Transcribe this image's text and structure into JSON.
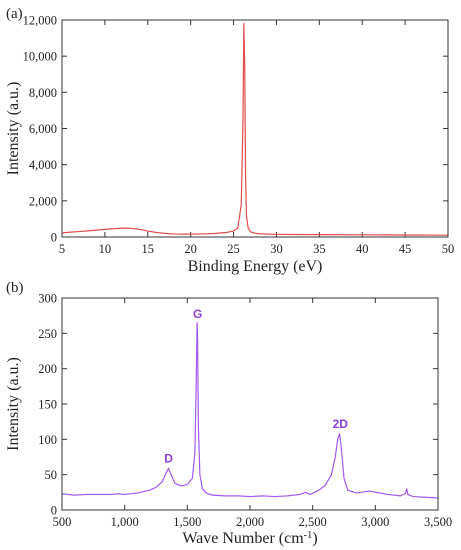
{
  "chart_data": [
    {
      "panel_label": "(a)",
      "type": "line",
      "xlabel": "Binding Energy (eV)",
      "ylabel": "Intensity (a.u.)",
      "xlim": [
        5,
        50
      ],
      "ylim": [
        0,
        12000
      ],
      "x_ticks": [
        "5",
        "10",
        "15",
        "20",
        "25",
        "30",
        "35",
        "40",
        "45",
        "50"
      ],
      "y_ticks": [
        "0",
        "2,000",
        "4,000",
        "6,000",
        "8,000",
        "10,000",
        "12,000"
      ],
      "series": [
        {
          "color": "#e24b4b",
          "x": [
            5,
            6,
            7,
            8,
            9,
            10,
            11,
            12,
            13,
            14,
            15,
            16,
            17,
            18,
            19,
            20,
            21,
            22,
            23,
            24,
            25,
            25.5,
            25.9,
            26.1,
            26.2,
            26.3,
            26.4,
            26.5,
            26.7,
            27,
            27.5,
            28,
            29,
            30,
            32,
            35,
            40,
            45,
            50
          ],
          "y": [
            230,
            270,
            300,
            340,
            380,
            420,
            460,
            490,
            480,
            430,
            330,
            250,
            200,
            170,
            160,
            160,
            170,
            180,
            200,
            240,
            330,
            500,
            1800,
            6500,
            11800,
            9500,
            3500,
            1200,
            500,
            280,
            210,
            180,
            160,
            150,
            140,
            130,
            120,
            110,
            100
          ]
        }
      ]
    },
    {
      "panel_label": "(b)",
      "type": "line",
      "xlabel": "Wave Number (cm",
      "xlabel_sup": "-1",
      "xlabel_tail": ")",
      "ylabel": "Intensity (a.u.)",
      "xlim": [
        500,
        3500
      ],
      "ylim": [
        0,
        300
      ],
      "x_ticks": [
        "500",
        "1,000",
        "1,500",
        "2,000",
        "2,500",
        "3,000",
        "3,500"
      ],
      "y_ticks": [
        "0",
        "50",
        "100",
        "150",
        "200",
        "250",
        "300"
      ],
      "annotations": [
        {
          "text": "D",
          "x": 1350,
          "y": 67
        },
        {
          "text": "G",
          "x": 1582,
          "y": 272
        },
        {
          "text": "2D",
          "x": 2720,
          "y": 116
        }
      ],
      "series": [
        {
          "color": "#a259f0",
          "x": [
            500,
            600,
            700,
            800,
            900,
            950,
            1000,
            1100,
            1200,
            1250,
            1300,
            1330,
            1350,
            1370,
            1400,
            1450,
            1500,
            1540,
            1560,
            1570,
            1578,
            1582,
            1588,
            1600,
            1620,
            1650,
            1700,
            1800,
            1900,
            2000,
            2100,
            2200,
            2300,
            2400,
            2440,
            2480,
            2550,
            2600,
            2650,
            2680,
            2700,
            2715,
            2730,
            2750,
            2780,
            2850,
            2950,
            3100,
            3200,
            3240,
            3250,
            3260,
            3300,
            3400,
            3500
          ],
          "y": [
            23,
            21,
            22,
            22,
            22,
            23,
            22,
            24,
            28,
            32,
            40,
            52,
            59,
            50,
            38,
            34,
            36,
            45,
            80,
            170,
            265,
            240,
            120,
            50,
            30,
            24,
            21,
            20,
            20,
            19,
            20,
            19,
            20,
            22,
            25,
            22,
            28,
            35,
            50,
            75,
            100,
            108,
            85,
            45,
            28,
            24,
            27,
            22,
            20,
            23,
            30,
            22,
            19,
            18,
            17
          ]
        }
      ]
    }
  ]
}
